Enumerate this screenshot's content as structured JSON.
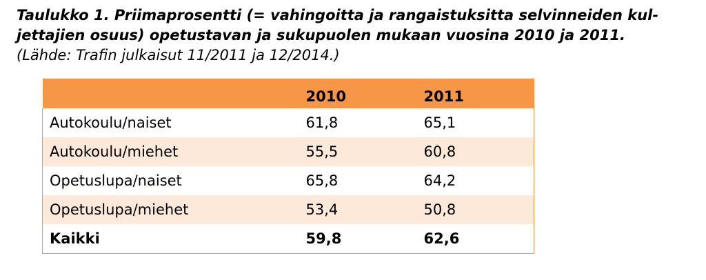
{
  "caption": {
    "title": "Taulukko 1. Priimaprosentti (= vahingoitta ja rangaistuksitta selvinneiden kuljettajien osuus) opetustavan ja sukupuolen mukaan vuosina 2010 ja 2011.",
    "title_line1": "Taulukko 1. Priimaprosentti (= vahingoitta ja rangaistuksitta selvinneiden kul-",
    "title_line2": "jettajien osuus) opetustavan ja sukupuolen mukaan vuosina 2010 ja 2011.",
    "source": "(Lähde: Trafin julkaisut 11/2011 ja 12/2014.)"
  },
  "table": {
    "header": [
      "",
      "2010",
      "2011"
    ],
    "rows": [
      [
        "Autokoulu/naiset",
        "61,8",
        "65,1"
      ],
      [
        "Autokoulu/miehet",
        "55,5",
        "60,8"
      ],
      [
        "Opetuslupa/naiset",
        "65,8",
        "64,2"
      ],
      [
        "Opetuslupa/miehet",
        "53,4",
        "50,8"
      ],
      [
        "Kaikki",
        "59,8",
        "62,6"
      ]
    ]
  },
  "colors": {
    "header_bg": "#f79646",
    "stripe_bg": "#fde9d9",
    "border": "#f79646"
  }
}
